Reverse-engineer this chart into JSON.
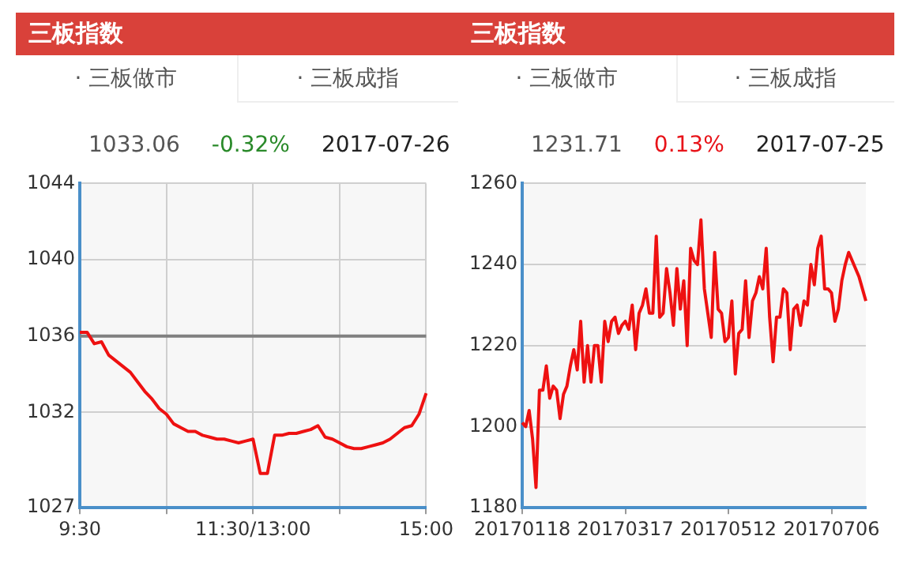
{
  "chart_data": [
    {
      "type": "line",
      "title": "三板指数",
      "annotations": [
        "· 三板做市",
        "· 三板成指",
        "1033.06",
        "-0.32%",
        "2017-07-26"
      ],
      "categories": [
        "9:30",
        null,
        null,
        null,
        null,
        null,
        null,
        null,
        null,
        null,
        null,
        null,
        null,
        null,
        null,
        null,
        null,
        null,
        null,
        null,
        null,
        null,
        null,
        null,
        "11:30/13:00",
        null,
        null,
        null,
        null,
        null,
        null,
        null,
        null,
        null,
        null,
        null,
        null,
        null,
        null,
        null,
        null,
        null,
        null,
        null,
        null,
        null,
        null,
        null,
        "15:00"
      ],
      "series": [
        {
          "color": "#ee1111",
          "values": [
            1036.2,
            1036.2,
            1035.6,
            1035.7,
            1035.0,
            1034.7,
            1034.4,
            1034.1,
            1033.6,
            1033.1,
            1032.7,
            1032.2,
            1031.9,
            1031.4,
            1031.2,
            1031.0,
            1031.0,
            1030.8,
            1030.7,
            1030.6,
            1030.6,
            1030.5,
            1030.4,
            1030.5,
            1030.6,
            1028.8,
            1028.8,
            1030.8,
            1030.8,
            1030.9,
            1030.9,
            1031.0,
            1031.1,
            1031.3,
            1030.7,
            1030.6,
            1030.4,
            1030.2,
            1030.1,
            1030.1,
            1030.2,
            1030.3,
            1030.4,
            1030.6,
            1030.9,
            1031.2,
            1031.3,
            1031.9,
            1033.0
          ]
        }
      ],
      "ylim": [
        1027,
        1044
      ],
      "yticks": [
        1027,
        1032,
        1036,
        1040,
        1044
      ],
      "grid": true,
      "ref_lines": [
        {
          "axis": "y",
          "value": 1036,
          "color": "#808080"
        }
      ]
    },
    {
      "type": "line",
      "title": "三板指数",
      "annotations": [
        "· 三板做市",
        "· 三板成指",
        "1231.71",
        "0.13%",
        "2017-07-25"
      ],
      "categories": [
        "20170118",
        null,
        null,
        null,
        null,
        null,
        null,
        null,
        null,
        null,
        null,
        null,
        null,
        null,
        null,
        null,
        null,
        null,
        null,
        null,
        null,
        null,
        null,
        null,
        null,
        null,
        null,
        null,
        null,
        null,
        "20170317",
        null,
        null,
        null,
        null,
        null,
        null,
        null,
        null,
        null,
        null,
        null,
        null,
        null,
        null,
        null,
        null,
        null,
        null,
        null,
        null,
        null,
        null,
        null,
        null,
        null,
        null,
        null,
        null,
        null,
        "20170512",
        null,
        null,
        null,
        null,
        null,
        null,
        null,
        null,
        null,
        null,
        null,
        null,
        null,
        null,
        null,
        null,
        null,
        null,
        null,
        null,
        null,
        null,
        null,
        null,
        null,
        null,
        null,
        null,
        null,
        "20170706",
        null,
        null,
        null,
        null,
        null,
        null,
        null,
        null,
        null,
        null
      ],
      "series": [
        {
          "color": "#ee1111",
          "values": [
            1201,
            1200,
            1204,
            1197,
            1185,
            1209,
            1209,
            1215,
            1207,
            1210,
            1209,
            1202,
            1208,
            1210,
            1215,
            1219,
            1214,
            1226,
            1211,
            1220,
            1211,
            1220,
            1220,
            1211,
            1226,
            1221,
            1226,
            1227,
            1223,
            1225,
            1226,
            1224,
            1230,
            1219,
            1228,
            1230,
            1234,
            1228,
            1228,
            1247,
            1227,
            1228,
            1239,
            1233,
            1225,
            1239,
            1229,
            1236,
            1220,
            1244,
            1241,
            1240,
            1251,
            1234,
            1228,
            1222,
            1243,
            1229,
            1228,
            1221,
            1222,
            1231,
            1213,
            1223,
            1224,
            1236,
            1222,
            1231,
            1233,
            1237,
            1234,
            1244,
            1227,
            1216,
            1227,
            1227,
            1234,
            1233,
            1219,
            1229,
            1230,
            1225,
            1231,
            1230,
            1240,
            1235,
            1244,
            1247,
            1234,
            1234,
            1233,
            1226,
            1229,
            1236,
            1240,
            1243,
            1241,
            1239,
            1237,
            1234,
            1231
          ]
        }
      ],
      "ylim": [
        1180,
        1260
      ],
      "yticks": [
        1180,
        1200,
        1220,
        1240,
        1260
      ],
      "grid": "y"
    }
  ]
}
